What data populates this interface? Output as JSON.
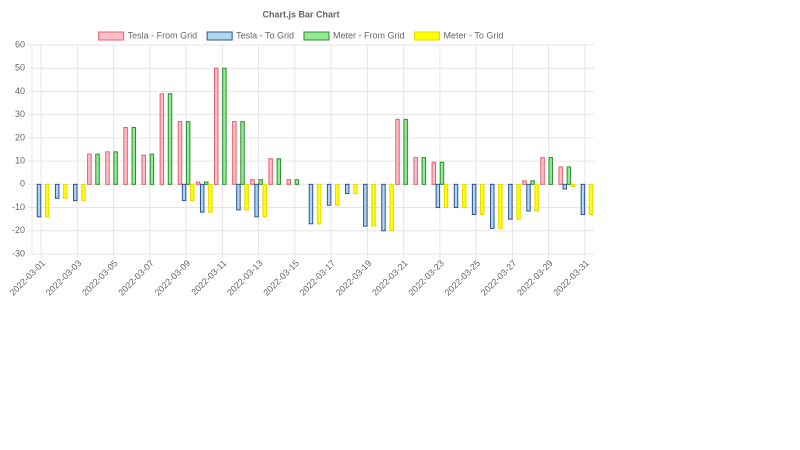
{
  "chart_data": {
    "type": "bar",
    "title": "Chart.js Bar Chart",
    "categories": [
      "2022-03-01",
      null,
      "2022-03-03",
      null,
      "2022-03-05",
      null,
      "2022-03-07",
      null,
      "2022-03-09",
      null,
      "2022-03-11",
      null,
      "2022-03-13",
      null,
      "2022-03-15",
      null,
      "2022-03-17",
      null,
      "2022-03-19",
      null,
      "2022-03-21",
      null,
      "2022-03-23",
      null,
      "2022-03-25",
      null,
      "2022-03-27",
      null,
      "2022-03-29",
      null,
      "2022-03-31"
    ],
    "series": [
      {
        "name": "Tesla - From Grid",
        "color": "#ffc0cb",
        "border_color": "#e0606e",
        "values": [
          0,
          0,
          0,
          13,
          14,
          24.5,
          12.5,
          39,
          27,
          1,
          50,
          27,
          2,
          11,
          2,
          0,
          0,
          0,
          0,
          0,
          28,
          11.5,
          9.5,
          0,
          0,
          0,
          0,
          1.5,
          11.5,
          7.5,
          0
        ]
      },
      {
        "name": "Tesla - To Grid",
        "color": "#add8e6",
        "border_color": "#2f4f9f",
        "values": [
          -14,
          -6,
          -7,
          0,
          0,
          0,
          0,
          0,
          -7,
          -12,
          0,
          -11,
          -14,
          0,
          0,
          -17,
          -9,
          -4,
          -18,
          -20,
          0,
          0,
          -10,
          -10,
          -13,
          -19,
          -15,
          -11.5,
          0,
          -2,
          -13
        ]
      },
      {
        "name": "Meter - From Grid",
        "color": "#90ee90",
        "border_color": "#2e8b2e",
        "values": [
          0,
          0,
          0,
          13,
          14,
          24.5,
          13,
          39,
          27,
          1,
          50,
          27,
          2,
          11,
          2,
          0,
          0,
          0,
          0,
          0,
          28,
          11.5,
          9.5,
          0,
          0,
          0,
          0,
          1.5,
          11.5,
          7.5,
          0
        ]
      },
      {
        "name": "Meter - To Grid",
        "color": "#ffff00",
        "border_color": "#e6d800",
        "values": [
          -14,
          -6,
          -7,
          0,
          0,
          0,
          0,
          0,
          -7,
          -12,
          0,
          -11,
          -14,
          0,
          0,
          -17,
          -9,
          -4,
          -18,
          -20,
          0,
          0,
          -10,
          -10,
          -13,
          -19,
          -15,
          -11.5,
          0,
          -1,
          -13
        ]
      }
    ],
    "ylim": [
      -30,
      60
    ],
    "yticks": [
      -30,
      -20,
      -10,
      0,
      10,
      20,
      30,
      40,
      50,
      60
    ],
    "grid": true,
    "legend": "top"
  }
}
